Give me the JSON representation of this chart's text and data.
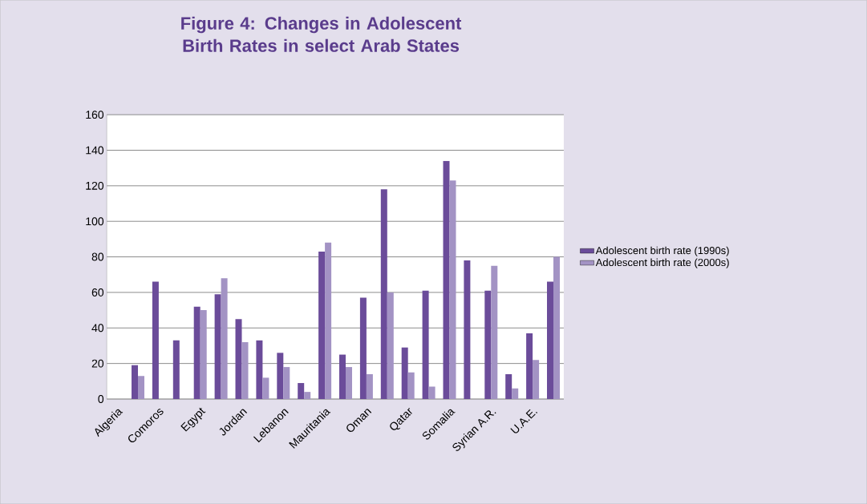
{
  "chart_data": {
    "type": "bar",
    "title": "Figure 4: Changes in Adolescent Birth Rates in select Arab States",
    "categories": [
      "Algeria",
      null,
      "Comoros",
      null,
      "Egypt",
      null,
      "Jordan",
      null,
      "Lebanon",
      null,
      "Mauritania",
      null,
      "Oman",
      null,
      "Qatar",
      null,
      "Somalia",
      null,
      "Syrian A.R.",
      null,
      "U.A.E.",
      null
    ],
    "series": [
      {
        "name": "Adolescent birth rate (1990s)",
        "color": "#6b4c9a",
        "values": [
          null,
          19,
          66,
          33,
          52,
          59,
          45,
          33,
          26,
          9,
          83,
          25,
          57,
          118,
          29,
          61,
          134,
          78,
          61,
          14,
          37,
          66
        ]
      },
      {
        "name": "Adolescent birth rate (2000s)",
        "color": "#a393c4",
        "values": [
          null,
          13,
          null,
          null,
          50,
          68,
          32,
          12,
          18,
          4,
          88,
          18,
          14,
          60,
          15,
          7,
          123,
          null,
          75,
          6,
          22,
          80
        ]
      }
    ],
    "ylim": [
      0,
      160
    ],
    "yticks": [
      0,
      20,
      40,
      60,
      80,
      100,
      120,
      140,
      160
    ],
    "grid": "y",
    "legend": "right"
  }
}
